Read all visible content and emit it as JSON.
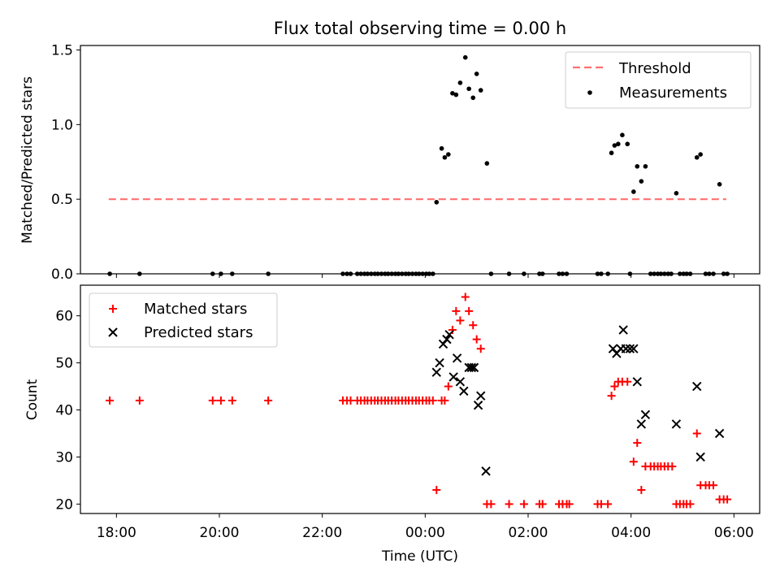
{
  "figure": {
    "title": "Flux total observing time = 0.00 h"
  },
  "chart_data": [
    {
      "type": "scatter",
      "panel": "top",
      "ylabel": "Matched/Predicted stars",
      "ylim": [
        0,
        1.53
      ],
      "yticks": [
        0.0,
        0.5,
        1.0,
        1.5
      ],
      "ytick_labels": [
        "0.0",
        "0.5",
        "1.0",
        "1.5"
      ],
      "legend_position": "upper-right",
      "threshold": {
        "name": "Threshold",
        "value": 0.5,
        "x_range": [
          -6.15,
          5.85
        ],
        "color": "#ff7070"
      },
      "series": [
        {
          "name": "Measurements",
          "color": "#000000",
          "points": [
            [
              -6.13,
              0
            ],
            [
              -5.55,
              0
            ],
            [
              -4.13,
              0
            ],
            [
              -3.97,
              0
            ],
            [
              -3.75,
              0
            ],
            [
              -3.05,
              0
            ],
            [
              -1.6,
              0
            ],
            [
              -1.52,
              0
            ],
            [
              -1.45,
              0
            ],
            [
              -1.32,
              0
            ],
            [
              -1.25,
              0
            ],
            [
              -1.18,
              0
            ],
            [
              -1.12,
              0
            ],
            [
              -1.05,
              0
            ],
            [
              -0.98,
              0
            ],
            [
              -0.92,
              0
            ],
            [
              -0.85,
              0
            ],
            [
              -0.78,
              0
            ],
            [
              -0.72,
              0
            ],
            [
              -0.65,
              0
            ],
            [
              -0.58,
              0
            ],
            [
              -0.52,
              0
            ],
            [
              -0.45,
              0
            ],
            [
              -0.38,
              0
            ],
            [
              -0.32,
              0
            ],
            [
              -0.25,
              0
            ],
            [
              -0.18,
              0
            ],
            [
              -0.12,
              0
            ],
            [
              -0.05,
              0
            ],
            [
              0.02,
              0
            ],
            [
              0.08,
              0
            ],
            [
              0.15,
              0
            ],
            [
              0.22,
              0.48
            ],
            [
              0.32,
              0.84
            ],
            [
              0.38,
              0.78
            ],
            [
              0.45,
              0.8
            ],
            [
              0.53,
              1.21
            ],
            [
              0.6,
              1.2
            ],
            [
              0.68,
              1.28
            ],
            [
              0.78,
              1.45
            ],
            [
              0.85,
              1.24
            ],
            [
              0.93,
              1.18
            ],
            [
              1.0,
              1.34
            ],
            [
              1.08,
              1.23
            ],
            [
              1.2,
              0.74
            ],
            [
              1.28,
              0
            ],
            [
              1.63,
              0
            ],
            [
              1.92,
              0
            ],
            [
              2.22,
              0
            ],
            [
              2.28,
              0
            ],
            [
              2.6,
              0
            ],
            [
              2.67,
              0
            ],
            [
              2.75,
              0
            ],
            [
              3.35,
              0
            ],
            [
              3.42,
              0
            ],
            [
              3.55,
              0
            ],
            [
              3.62,
              0.81
            ],
            [
              3.68,
              0.86
            ],
            [
              3.75,
              0.87
            ],
            [
              3.83,
              0.93
            ],
            [
              3.93,
              0.87
            ],
            [
              3.98,
              0
            ],
            [
              4.05,
              0.55
            ],
            [
              4.12,
              0.72
            ],
            [
              4.2,
              0.62
            ],
            [
              4.28,
              0.72
            ],
            [
              4.38,
              0
            ],
            [
              4.45,
              0
            ],
            [
              4.52,
              0
            ],
            [
              4.58,
              0
            ],
            [
              4.65,
              0
            ],
            [
              4.72,
              0
            ],
            [
              4.78,
              0
            ],
            [
              4.88,
              0.54
            ],
            [
              4.95,
              0
            ],
            [
              5.02,
              0
            ],
            [
              5.08,
              0
            ],
            [
              5.15,
              0
            ],
            [
              5.28,
              0.78
            ],
            [
              5.35,
              0.8
            ],
            [
              5.45,
              0
            ],
            [
              5.52,
              0
            ],
            [
              5.6,
              0
            ],
            [
              5.72,
              0.6
            ],
            [
              5.8,
              0
            ],
            [
              5.87,
              0
            ]
          ]
        }
      ]
    },
    {
      "type": "scatter",
      "panel": "bottom",
      "xlabel": "Time (UTC)",
      "ylabel": "Count",
      "xlim": [
        -6.7,
        6.5
      ],
      "ylim": [
        18,
        66.5
      ],
      "xticks": [
        -6,
        -4,
        -2,
        0,
        2,
        4,
        6
      ],
      "xtick_labels": [
        "18:00",
        "20:00",
        "22:00",
        "00:00",
        "02:00",
        "04:00",
        "06:00"
      ],
      "yticks": [
        20,
        30,
        40,
        50,
        60
      ],
      "ytick_labels": [
        "20",
        "30",
        "40",
        "50",
        "60"
      ],
      "legend_position": "upper-left",
      "series": [
        {
          "name": "Matched stars",
          "marker": "plus",
          "color": "#ff0000",
          "points": [
            [
              -6.13,
              42
            ],
            [
              -5.55,
              42
            ],
            [
              -4.13,
              42
            ],
            [
              -3.97,
              42
            ],
            [
              -3.75,
              42
            ],
            [
              -3.05,
              42
            ],
            [
              -1.6,
              42
            ],
            [
              -1.52,
              42
            ],
            [
              -1.45,
              42
            ],
            [
              -1.32,
              42
            ],
            [
              -1.25,
              42
            ],
            [
              -1.18,
              42
            ],
            [
              -1.12,
              42
            ],
            [
              -1.05,
              42
            ],
            [
              -0.98,
              42
            ],
            [
              -0.92,
              42
            ],
            [
              -0.85,
              42
            ],
            [
              -0.78,
              42
            ],
            [
              -0.72,
              42
            ],
            [
              -0.65,
              42
            ],
            [
              -0.58,
              42
            ],
            [
              -0.52,
              42
            ],
            [
              -0.45,
              42
            ],
            [
              -0.38,
              42
            ],
            [
              -0.32,
              42
            ],
            [
              -0.25,
              42
            ],
            [
              -0.18,
              42
            ],
            [
              -0.12,
              42
            ],
            [
              -0.05,
              42
            ],
            [
              0.02,
              42
            ],
            [
              0.08,
              42
            ],
            [
              0.15,
              42
            ],
            [
              0.22,
              23
            ],
            [
              0.32,
              42
            ],
            [
              0.38,
              42
            ],
            [
              0.45,
              45
            ],
            [
              0.53,
              57
            ],
            [
              0.6,
              61
            ],
            [
              0.68,
              59
            ],
            [
              0.78,
              64
            ],
            [
              0.85,
              61
            ],
            [
              0.93,
              58
            ],
            [
              1.0,
              55
            ],
            [
              1.08,
              53
            ],
            [
              1.2,
              20
            ],
            [
              1.28,
              20
            ],
            [
              1.63,
              20
            ],
            [
              1.92,
              20
            ],
            [
              2.22,
              20
            ],
            [
              2.28,
              20
            ],
            [
              2.6,
              20
            ],
            [
              2.67,
              20
            ],
            [
              2.75,
              20
            ],
            [
              2.8,
              20
            ],
            [
              3.35,
              20
            ],
            [
              3.42,
              20
            ],
            [
              3.55,
              20
            ],
            [
              3.62,
              43
            ],
            [
              3.68,
              45
            ],
            [
              3.75,
              46
            ],
            [
              3.83,
              46
            ],
            [
              3.93,
              46
            ],
            [
              4.05,
              29
            ],
            [
              4.12,
              33
            ],
            [
              4.2,
              23
            ],
            [
              4.28,
              28
            ],
            [
              4.38,
              28
            ],
            [
              4.45,
              28
            ],
            [
              4.52,
              28
            ],
            [
              4.58,
              28
            ],
            [
              4.65,
              28
            ],
            [
              4.72,
              28
            ],
            [
              4.8,
              28
            ],
            [
              4.88,
              20
            ],
            [
              4.95,
              20
            ],
            [
              5.02,
              20
            ],
            [
              5.08,
              20
            ],
            [
              5.15,
              20
            ],
            [
              5.28,
              35
            ],
            [
              5.35,
              24
            ],
            [
              5.45,
              24
            ],
            [
              5.52,
              24
            ],
            [
              5.6,
              24
            ],
            [
              5.72,
              21
            ],
            [
              5.8,
              21
            ],
            [
              5.87,
              21
            ]
          ]
        },
        {
          "name": "Predicted stars",
          "marker": "x",
          "color": "#000000",
          "points": [
            [
              0.22,
              48
            ],
            [
              0.28,
              50
            ],
            [
              0.35,
              54
            ],
            [
              0.42,
              55
            ],
            [
              0.47,
              56
            ],
            [
              0.55,
              47
            ],
            [
              0.62,
              51
            ],
            [
              0.68,
              46
            ],
            [
              0.75,
              44
            ],
            [
              0.85,
              49
            ],
            [
              0.9,
              49
            ],
            [
              0.95,
              49
            ],
            [
              1.03,
              41
            ],
            [
              1.08,
              43
            ],
            [
              1.18,
              27
            ],
            [
              3.65,
              53
            ],
            [
              3.72,
              52
            ],
            [
              3.8,
              53
            ],
            [
              3.85,
              57
            ],
            [
              3.9,
              53
            ],
            [
              3.98,
              53
            ],
            [
              4.05,
              53
            ],
            [
              4.12,
              46
            ],
            [
              4.2,
              37
            ],
            [
              4.28,
              39
            ],
            [
              4.88,
              37
            ],
            [
              5.28,
              45
            ],
            [
              5.35,
              30
            ],
            [
              5.72,
              35
            ]
          ]
        }
      ]
    }
  ]
}
